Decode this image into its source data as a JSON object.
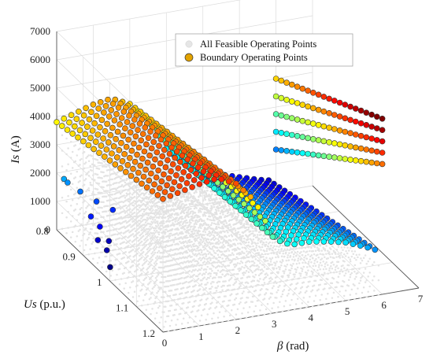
{
  "chart_data": {
    "type": "scatter3d",
    "title": "",
    "axes": {
      "x": {
        "label": "β (rad)",
        "label_symbol": "β",
        "label_unit": " (rad)",
        "range": [
          0,
          7
        ],
        "ticks": [
          "0",
          "1",
          "2",
          "3",
          "4",
          "5",
          "6",
          "7"
        ]
      },
      "y": {
        "label": "Us (p.u.)",
        "label_symbol": "Us",
        "label_unit": " (p.u.)",
        "range": [
          0.8,
          1.2
        ],
        "ticks": [
          "0.8",
          "0.9",
          "1",
          "1.1",
          "1.2"
        ]
      },
      "z": {
        "label": "Is (A)",
        "label_symbol": "Is",
        "label_unit": " (A)",
        "range": [
          0,
          7000
        ],
        "ticks": [
          "0",
          "1000",
          "2000",
          "3000",
          "4000",
          "5000",
          "6000",
          "7000"
        ]
      }
    },
    "grid": true,
    "legend": {
      "position": "top-right",
      "entries": [
        "All Feasible Operating Points",
        "Boundary Operating Points"
      ]
    },
    "colormap": "jet",
    "colors": {
      "feasible_points": "#e3e3e3",
      "boundary_edge": "#333333",
      "grid": "#dcdcdc",
      "axis": "#555555"
    },
    "series": [
      {
        "name": "All Feasible Operating Points",
        "marker": "small-dot",
        "description_region": "dense grid filling the feasible volume below the boundary surface",
        "beta_samples": 36,
        "us_samples": 25
      },
      {
        "name": "Boundary Operating Points",
        "marker": "filled-circle",
        "color_by": "Is",
        "Us_rows": [
          0.8,
          0.82,
          0.84,
          0.86,
          0.88,
          0.9,
          0.92,
          0.94,
          0.96,
          0.98,
          1.0,
          1.02,
          1.04,
          1.06,
          1.08,
          1.1,
          1.12,
          1.14,
          1.16,
          1.18,
          1.2
        ],
        "beta_main": [
          0.0,
          0.2,
          0.4,
          0.6,
          0.8,
          1.0,
          1.2,
          1.4,
          1.6,
          1.8,
          2.0,
          2.2,
          2.4,
          2.6,
          2.8,
          3.0,
          3.2,
          3.4,
          3.6,
          3.8,
          4.0,
          4.2,
          4.4,
          4.6,
          4.8,
          5.0,
          5.2,
          5.4,
          5.6,
          5.8
        ],
        "beta_end": 6.0,
        "Is_profile_beta": [
          0.0,
          1.0,
          1.5,
          2.0,
          2.5,
          2.8,
          3.0,
          3.3,
          3.6,
          4.0,
          4.5,
          5.0,
          5.5,
          6.0
        ],
        "Is_profile_low": [
          3800,
          4200,
          4300,
          4000,
          3300,
          2700,
          2200,
          1800,
          1500,
          1200,
          950,
          750,
          550,
          400
        ],
        "Is_profile_high": [
          4700,
          5000,
          5100,
          4800,
          4100,
          3300,
          2700,
          2400,
          2300,
          2300,
          2200,
          2050,
          1800,
          1500
        ],
        "Is_end_low": [
          1500,
          4000
        ],
        "Is_end_high": [
          4600,
          6200
        ],
        "isolated_points": [
          {
            "Us": 0.8,
            "beta": 0.2,
            "Is": 1750
          },
          {
            "Us": 0.8,
            "beta": 0.3,
            "Is": 1600
          },
          {
            "Us": 0.82,
            "beta": 0.5,
            "Is": 1420
          },
          {
            "Us": 0.84,
            "beta": 0.8,
            "Is": 1180
          },
          {
            "Us": 0.86,
            "beta": 1.1,
            "Is": 1000
          },
          {
            "Us": 0.86,
            "beta": 0.5,
            "Is": 900
          },
          {
            "Us": 0.88,
            "beta": 0.6,
            "Is": 700
          },
          {
            "Us": 0.9,
            "beta": 0.4,
            "Is": 450
          },
          {
            "Us": 0.9,
            "beta": 0.7,
            "Is": 350
          },
          {
            "Us": 0.92,
            "beta": 0.5,
            "Is": 250
          },
          {
            "Us": 0.96,
            "beta": 0.3,
            "Is": 60
          }
        ]
      }
    ]
  }
}
